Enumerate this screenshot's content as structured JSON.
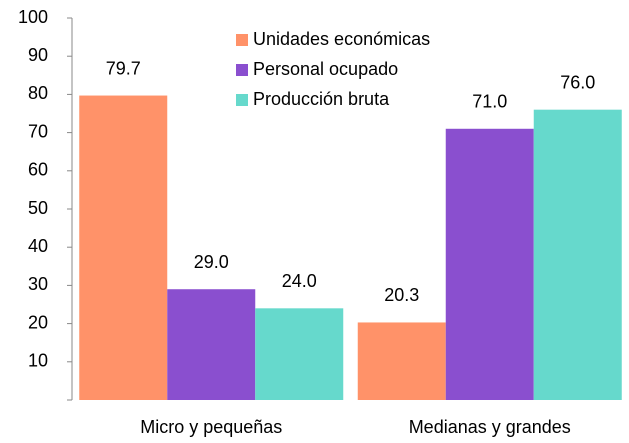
{
  "chart_data": {
    "type": "bar",
    "categories": [
      "Micro y pequeñas",
      "Medianas y grandes"
    ],
    "series": [
      {
        "name": "Unidades económicas",
        "color": "#ff9269",
        "values": [
          79.7,
          20.3
        ],
        "value_labels": [
          "79.7",
          "20.3"
        ]
      },
      {
        "name": "Personal ocupado",
        "color": "#8a4fcf",
        "values": [
          29,
          71
        ],
        "value_labels": [
          "29.0",
          "71.0"
        ]
      },
      {
        "name": "Producción bruta",
        "color": "#66d9cc",
        "values": [
          24,
          76
        ],
        "value_labels": [
          "24.0",
          "76.0"
        ]
      }
    ],
    "ylim": [
      0,
      100
    ],
    "yticks": [
      10,
      20,
      30,
      40,
      50,
      60,
      70,
      80,
      90,
      100
    ],
    "legend": "top"
  }
}
